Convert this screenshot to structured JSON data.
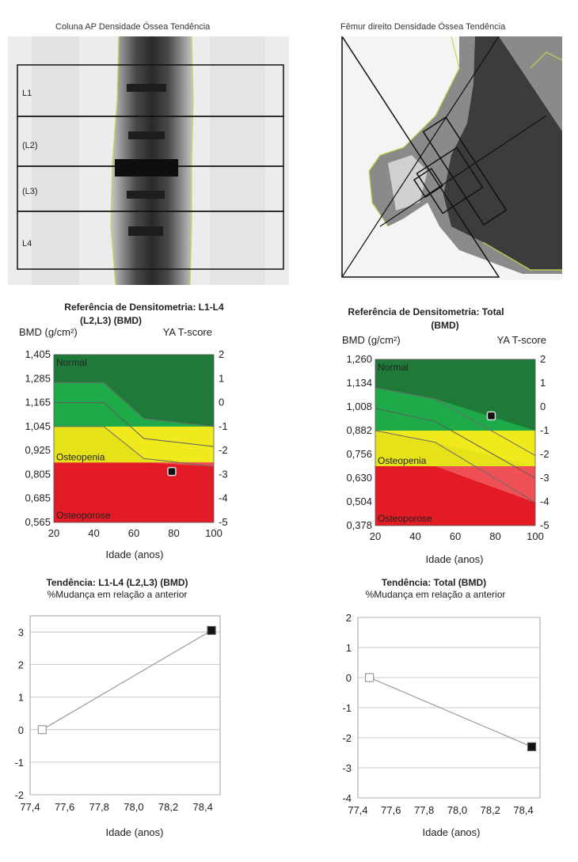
{
  "images": {
    "spine": {
      "title": "Coluna AP Densidade Óssea Tendência",
      "vertebrae": [
        "L1",
        "(L2)",
        "(L3)",
        "L4"
      ]
    },
    "femur": {
      "title": "Fêmur direito Densidade Óssea Tendência"
    }
  },
  "chart_data": [
    {
      "type": "area",
      "id": "ref-spine",
      "title": "Referência de Densitometria: L1-L4",
      "subtitle": "(L2,L3) (BMD)",
      "ylabel": "BMD (g/cm²)",
      "y2label": "YA T-score",
      "xlabel": "Idade (anos)",
      "x_ticks": [
        "20",
        "40",
        "60",
        "80",
        "100"
      ],
      "y_ticks": [
        "1,405",
        "1,285",
        "1,165",
        "1,045",
        "0,925",
        "0,805",
        "0,685",
        "0,565"
      ],
      "y2_ticks": [
        "2",
        "1",
        "0",
        "-1",
        "-2",
        "-3",
        "-4",
        "-5"
      ],
      "xlim": [
        20,
        100
      ],
      "ylim": [
        0.565,
        1.405
      ],
      "zones": [
        {
          "name": "Normal",
          "from": 1.045,
          "to": 1.405,
          "color": "#1f7a3a"
        },
        {
          "name": "Osteopenia",
          "from": 0.865,
          "to": 1.045,
          "color": "#f0ea1c"
        },
        {
          "name": "Osteoporose",
          "from": 0.565,
          "to": 0.865,
          "color": "#e21b24"
        }
      ],
      "zone_colors": {
        "normal_light": "#1faa4a",
        "red_light": "#ee5055",
        "yellow_light": "#e0dc18"
      },
      "reference_curve": {
        "x": [
          20,
          45,
          65,
          100
        ],
        "upper": [
          1.265,
          1.265,
          1.085,
          1.045
        ],
        "mid": [
          1.165,
          1.165,
          0.985,
          0.945
        ],
        "lower": [
          1.045,
          1.045,
          0.885,
          0.845
        ]
      },
      "points": [
        {
          "x": 79,
          "y": 0.82
        }
      ]
    },
    {
      "type": "area",
      "id": "ref-femur",
      "title": "Referência de Densitometria: Total",
      "subtitle": "(BMD)",
      "ylabel": "BMD (g/cm²)",
      "y2label": "YA T-score",
      "xlabel": "Idade (anos)",
      "x_ticks": [
        "20",
        "40",
        "60",
        "80",
        "100"
      ],
      "y_ticks": [
        "1,260",
        "1,134",
        "1,008",
        "0,882",
        "0,756",
        "0,630",
        "0,504",
        "0,378"
      ],
      "y2_ticks": [
        "2",
        "1",
        "0",
        "-1",
        "-2",
        "-3",
        "-4",
        "-5"
      ],
      "xlim": [
        20,
        100
      ],
      "ylim": [
        0.378,
        1.26
      ],
      "zones": [
        {
          "name": "Normal",
          "from": 0.882,
          "to": 1.26,
          "color": "#1f7a3a"
        },
        {
          "name": "Osteopenia",
          "from": 0.693,
          "to": 0.882,
          "color": "#f0ea1c"
        },
        {
          "name": "Osteoporose",
          "from": 0.378,
          "to": 0.693,
          "color": "#e21b24"
        }
      ],
      "zone_colors": {
        "normal_light": "#1faa4a",
        "red_light": "#ee5055",
        "yellow_light": "#e0dc18"
      },
      "reference_curve": {
        "x": [
          20,
          50,
          100
        ],
        "upper": [
          1.11,
          1.05,
          0.75
        ],
        "mid": [
          1.0,
          0.93,
          0.63
        ],
        "lower": [
          0.882,
          0.82,
          0.5
        ]
      },
      "points": [
        {
          "x": 78,
          "y": 0.96
        }
      ]
    },
    {
      "type": "line",
      "id": "trend-spine",
      "title": "Tendência: L1-L4 (L2,L3) (BMD)",
      "subtitle": "%Mudança em relação a anterior",
      "xlabel": "Idade (anos)",
      "x_ticks": [
        "77,4",
        "77,6",
        "77,8",
        "78,0",
        "78,2",
        "78,4"
      ],
      "y_ticks": [
        "3",
        "2",
        "1",
        "0",
        "-1",
        "-2"
      ],
      "xlim": [
        77.4,
        78.5
      ],
      "ylim": [
        -2,
        3.5
      ],
      "x": [
        77.47,
        78.45
      ],
      "y": [
        0,
        3.05
      ]
    },
    {
      "type": "line",
      "id": "trend-femur",
      "title": "Tendência: Total (BMD)",
      "subtitle": "%Mudança em relação a anterior",
      "xlabel": "Idade (anos)",
      "x_ticks": [
        "77,4",
        "77,6",
        "77,8",
        "78,0",
        "78,2",
        "78,4"
      ],
      "y_ticks": [
        "2",
        "1",
        "0",
        "-1",
        "-2",
        "-3",
        "-4"
      ],
      "xlim": [
        77.4,
        78.5
      ],
      "ylim": [
        -4,
        2
      ],
      "x": [
        77.47,
        78.45
      ],
      "y": [
        0,
        -2.3
      ]
    }
  ]
}
